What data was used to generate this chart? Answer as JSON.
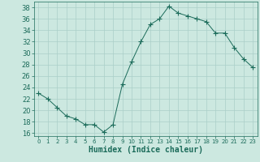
{
  "x": [
    0,
    1,
    2,
    3,
    4,
    5,
    6,
    7,
    8,
    9,
    10,
    11,
    12,
    13,
    14,
    15,
    16,
    17,
    18,
    19,
    20,
    21,
    22,
    23
  ],
  "y": [
    23,
    22,
    20.5,
    19,
    18.5,
    17.5,
    17.5,
    16.2,
    17.5,
    24.5,
    28.5,
    32,
    35,
    36,
    38.2,
    37,
    36.5,
    36,
    35.5,
    33.5,
    33.5,
    31,
    29,
    27.5
  ],
  "line_color": "#1b6b5a",
  "marker": "+",
  "marker_size": 4,
  "marker_color": "#1b6b5a",
  "bg_color": "#cce8e0",
  "grid_color": "#aacfc8",
  "xlabel": "Humidex (Indice chaleur)",
  "xlim": [
    -0.5,
    23.5
  ],
  "ylim": [
    15.5,
    39
  ],
  "yticks": [
    16,
    18,
    20,
    22,
    24,
    26,
    28,
    30,
    32,
    34,
    36,
    38
  ],
  "xticks": [
    0,
    1,
    2,
    3,
    4,
    5,
    6,
    7,
    8,
    9,
    10,
    11,
    12,
    13,
    14,
    15,
    16,
    17,
    18,
    19,
    20,
    21,
    22,
    23
  ],
  "tick_color": "#1b6b5a",
  "axis_color": "#1b6b5a",
  "xlabel_fontsize": 7,
  "ytick_fontsize": 6,
  "xtick_fontsize": 5
}
